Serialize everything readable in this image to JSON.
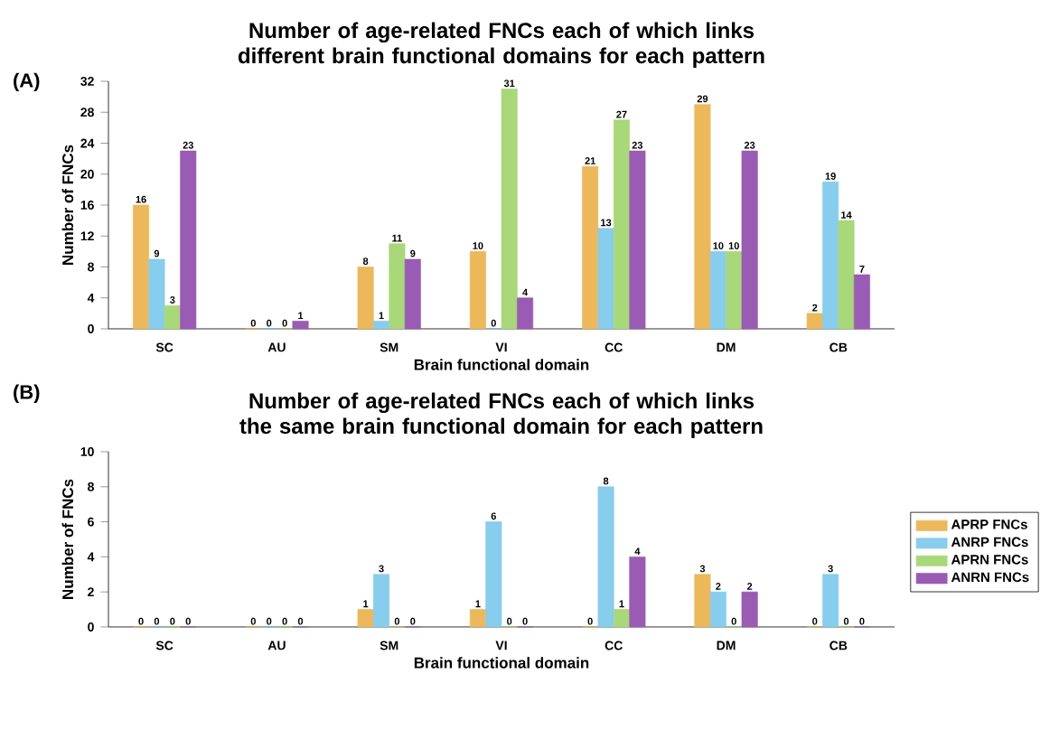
{
  "chart_data": [
    {
      "type": "bar",
      "title": "Number of age-related FNCs each of which links different brain functional domains for each pattern",
      "xlabel": "Brain functional domain",
      "ylabel": "Number of FNCs",
      "annotations": [
        "(A)"
      ],
      "categories": [
        "SC",
        "AU",
        "SM",
        "VI",
        "CC",
        "DM",
        "CB"
      ],
      "series": [
        {
          "name": "APRP FNCs",
          "color": "#edb85a",
          "values": [
            16,
            0,
            8,
            10,
            21,
            29,
            2
          ]
        },
        {
          "name": "ANRP FNCs",
          "color": "#86cdee",
          "values": [
            9,
            0,
            1,
            0,
            13,
            10,
            19
          ]
        },
        {
          "name": "APRN FNCs",
          "color": "#a8d878",
          "values": [
            3,
            0,
            11,
            31,
            27,
            10,
            14
          ]
        },
        {
          "name": "ANRN FNCs",
          "color": "#9a5bb5",
          "values": [
            23,
            1,
            9,
            4,
            23,
            23,
            7
          ]
        }
      ],
      "ylim": [
        0,
        32
      ],
      "yticks": [
        0,
        4,
        8,
        12,
        16,
        20,
        24,
        28,
        32
      ],
      "data_labels": true,
      "legend": "bottom right"
    },
    {
      "type": "bar",
      "title": "Number of age-related FNCs each of which links the same brain functional domain for each pattern",
      "xlabel": "Brain functional domain",
      "ylabel": "Number of FNCs",
      "annotations": [
        "(B)"
      ],
      "categories": [
        "SC",
        "AU",
        "SM",
        "VI",
        "CC",
        "DM",
        "CB"
      ],
      "series": [
        {
          "color": "#edb85a",
          "values": [
            0,
            0,
            1,
            1,
            0,
            3,
            0
          ]
        },
        {
          "color": "#86cdee",
          "values": [
            0,
            0,
            3,
            6,
            8,
            2,
            3
          ]
        },
        {
          "color": "#a8d878",
          "values": [
            0,
            0,
            0,
            0,
            1,
            0,
            0
          ]
        },
        {
          "color": "#9a5bb5",
          "values": [
            0,
            0,
            0,
            0,
            4,
            2,
            0
          ]
        }
      ],
      "ylim": [
        0,
        10
      ],
      "yticks": [
        0,
        2,
        4,
        6,
        8,
        10
      ],
      "data_labels": true
    }
  ]
}
